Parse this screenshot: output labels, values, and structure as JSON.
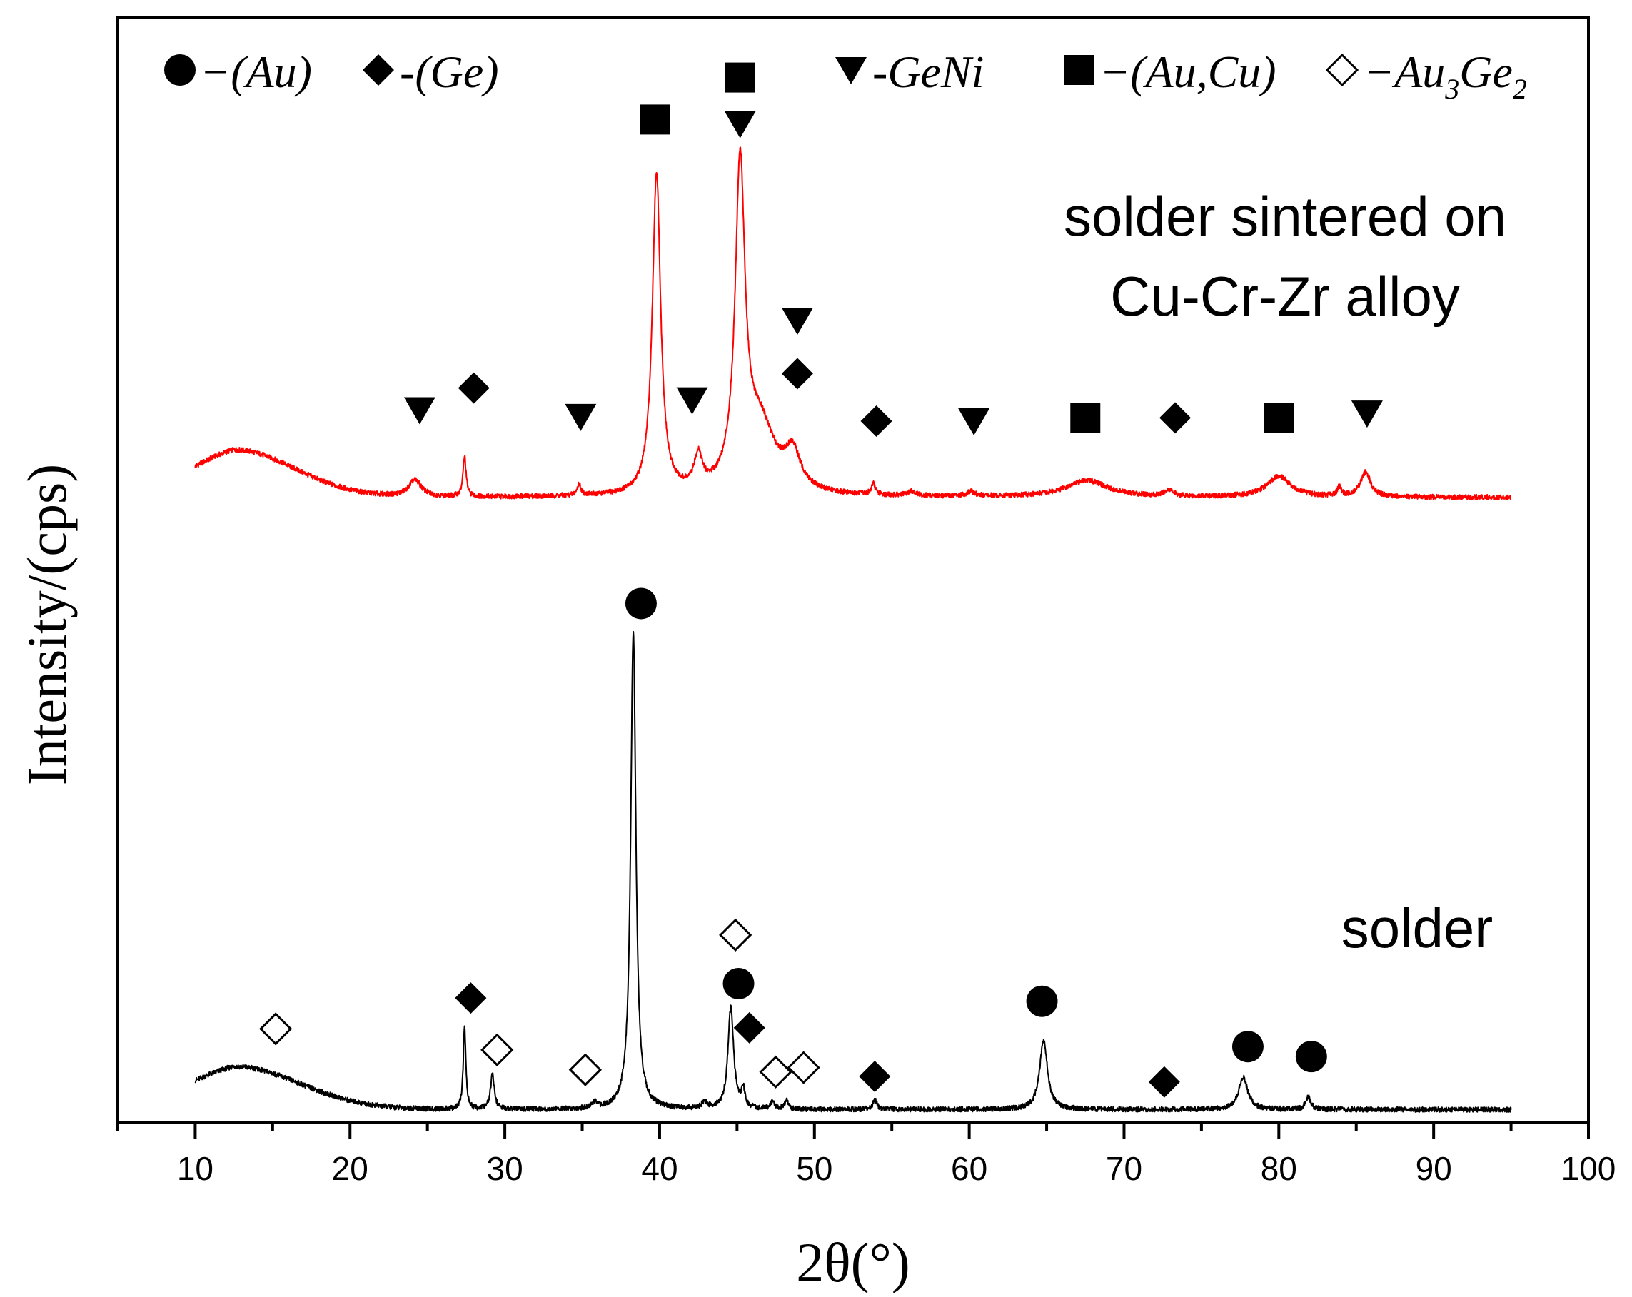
{
  "chart_data": {
    "type": "line",
    "title": "",
    "xlabel": "2θ(°)",
    "ylabel": "Intensity/(cps)",
    "xlim": [
      5,
      100
    ],
    "ylim": [
      0,
      100
    ],
    "xticks": [
      10,
      20,
      30,
      40,
      50,
      60,
      70,
      80,
      90,
      100
    ],
    "y_ticks_shown": false,
    "legend": {
      "placement": "top",
      "entries": [
        {
          "symbol": "circle-filled",
          "text": "−(Au)"
        },
        {
          "symbol": "diamond-filled",
          "text": "-(Ge)"
        },
        {
          "symbol": "triangle-down-filled",
          "text": "-GeNi"
        },
        {
          "symbol": "square-filled",
          "text": "−(Au,Cu)"
        },
        {
          "symbol": "diamond-open",
          "text": "−Au",
          "sub1": "3",
          "mid": "Ge",
          "sub2": "2"
        }
      ]
    },
    "series": [
      {
        "name": "solder sintered on Cu-Cr-Zr alloy",
        "label_lines": [
          "solder sintered on",
          "Cu-Cr-Zr alloy"
        ],
        "color": "#ff0000",
        "x_range": [
          10,
          95
        ],
        "baseline": 56.6,
        "hump": {
          "center": 12.5,
          "width": 5.5,
          "height": 4.3
        },
        "peaks": [
          {
            "x": 24.2,
            "h": 1.5,
            "w": 0.5
          },
          {
            "x": 27.4,
            "h": 3.6,
            "w": 0.12
          },
          {
            "x": 34.8,
            "h": 1.0,
            "w": 0.15
          },
          {
            "x": 39.8,
            "h": 29.1,
            "w": 0.32
          },
          {
            "x": 42.5,
            "h": 3.0,
            "w": 0.3
          },
          {
            "x": 45.2,
            "h": 28.6,
            "w": 0.38
          },
          {
            "x": 46.5,
            "h": 6.0,
            "w": 1.2
          },
          {
            "x": 48.6,
            "h": 3.2,
            "w": 0.6
          },
          {
            "x": 53.8,
            "h": 1.0,
            "w": 0.15
          },
          {
            "x": 56.3,
            "h": 0.4,
            "w": 0.3
          },
          {
            "x": 60.1,
            "h": 0.4,
            "w": 0.3
          },
          {
            "x": 67.6,
            "h": 1.5,
            "w": 1.6
          },
          {
            "x": 72.9,
            "h": 0.6,
            "w": 0.3
          },
          {
            "x": 80.0,
            "h": 1.9,
            "w": 0.9
          },
          {
            "x": 83.9,
            "h": 0.8,
            "w": 0.15
          },
          {
            "x": 85.6,
            "h": 2.2,
            "w": 0.4
          }
        ],
        "markers": [
          {
            "x": 24.5,
            "y": 64.5,
            "symbol": "triangle-down-filled"
          },
          {
            "x": 28.0,
            "y": 66.5,
            "symbol": "diamond-filled"
          },
          {
            "x": 34.9,
            "y": 63.9,
            "symbol": "triangle-down-filled"
          },
          {
            "x": 39.7,
            "y": 90.8,
            "symbol": "square-filled"
          },
          {
            "x": 42.1,
            "y": 65.4,
            "symbol": "triangle-down-filled"
          },
          {
            "x": 45.2,
            "y": 94.6,
            "symbol": "square-filled"
          },
          {
            "x": 45.2,
            "y": 90.4,
            "symbol": "triangle-down-filled"
          },
          {
            "x": 48.9,
            "y": 72.6,
            "symbol": "triangle-down-filled"
          },
          {
            "x": 48.9,
            "y": 67.8,
            "symbol": "diamond-filled"
          },
          {
            "x": 54.0,
            "y": 63.5,
            "symbol": "diamond-filled"
          },
          {
            "x": 60.3,
            "y": 63.5,
            "symbol": "triangle-down-filled"
          },
          {
            "x": 67.5,
            "y": 63.8,
            "symbol": "square-filled"
          },
          {
            "x": 73.3,
            "y": 63.8,
            "symbol": "diamond-filled"
          },
          {
            "x": 80.0,
            "y": 63.8,
            "symbol": "square-filled"
          },
          {
            "x": 85.7,
            "y": 64.2,
            "symbol": "triangle-down-filled"
          }
        ]
      },
      {
        "name": "solder",
        "label_lines": [
          "solder"
        ],
        "color": "#000000",
        "x_range": [
          10,
          95
        ],
        "baseline": 1.2,
        "hump": {
          "center": 12.5,
          "width": 6.0,
          "height": 3.9
        },
        "peaks": [
          {
            "x": 27.4,
            "h": 7.5,
            "w": 0.1
          },
          {
            "x": 29.2,
            "h": 3.1,
            "w": 0.15
          },
          {
            "x": 35.8,
            "h": 0.5,
            "w": 0.2
          },
          {
            "x": 38.3,
            "h": 43.2,
            "w": 0.2
          },
          {
            "x": 42.9,
            "h": 0.6,
            "w": 0.2
          },
          {
            "x": 44.6,
            "h": 9.2,
            "w": 0.22
          },
          {
            "x": 45.4,
            "h": 1.7,
            "w": 0.12
          },
          {
            "x": 47.3,
            "h": 0.7,
            "w": 0.15
          },
          {
            "x": 48.2,
            "h": 0.8,
            "w": 0.15
          },
          {
            "x": 53.9,
            "h": 0.9,
            "w": 0.15
          },
          {
            "x": 64.8,
            "h": 6.3,
            "w": 0.3
          },
          {
            "x": 77.7,
            "h": 2.9,
            "w": 0.35
          },
          {
            "x": 81.9,
            "h": 1.1,
            "w": 0.2
          }
        ],
        "markers": [
          {
            "x": 15.2,
            "y": 8.5,
            "symbol": "diamond-open"
          },
          {
            "x": 27.8,
            "y": 11.3,
            "symbol": "diamond-filled"
          },
          {
            "x": 29.5,
            "y": 6.6,
            "symbol": "diamond-open"
          },
          {
            "x": 35.2,
            "y": 4.8,
            "symbol": "diamond-open"
          },
          {
            "x": 38.8,
            "y": 47.0,
            "symbol": "circle-filled"
          },
          {
            "x": 44.9,
            "y": 17.0,
            "symbol": "diamond-open"
          },
          {
            "x": 45.1,
            "y": 12.6,
            "symbol": "circle-filled"
          },
          {
            "x": 45.8,
            "y": 8.6,
            "symbol": "diamond-filled"
          },
          {
            "x": 47.5,
            "y": 4.6,
            "symbol": "diamond-open"
          },
          {
            "x": 49.3,
            "y": 5.0,
            "symbol": "diamond-open"
          },
          {
            "x": 53.9,
            "y": 4.2,
            "symbol": "diamond-filled"
          },
          {
            "x": 64.7,
            "y": 11.0,
            "symbol": "circle-filled"
          },
          {
            "x": 72.6,
            "y": 3.7,
            "symbol": "diamond-filled"
          },
          {
            "x": 78.0,
            "y": 6.9,
            "symbol": "circle-filled"
          },
          {
            "x": 82.1,
            "y": 6.0,
            "symbol": "circle-filled"
          }
        ]
      }
    ]
  }
}
